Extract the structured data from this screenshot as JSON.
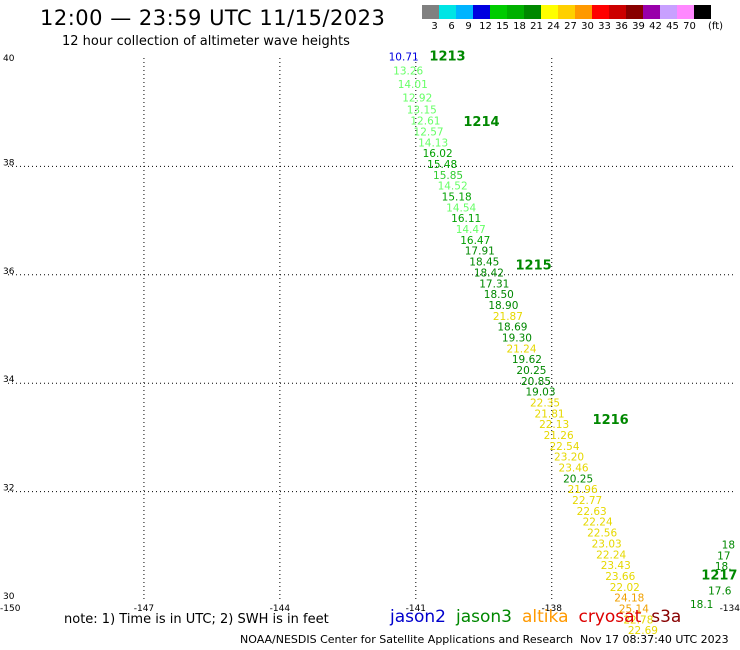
{
  "header": {
    "title": "12:00 — 23:59 UTC 11/15/2023",
    "subtitle": "12 hour collection of altimeter wave heights"
  },
  "colorbar": {
    "unit": "(ft)",
    "items": [
      {
        "label": "3",
        "color": "#808080"
      },
      {
        "label": "6",
        "color": "#00e5e5"
      },
      {
        "label": "9",
        "color": "#00b4ff"
      },
      {
        "label": "12",
        "color": "#0000e0"
      },
      {
        "label": "15",
        "color": "#00cc00"
      },
      {
        "label": "18",
        "color": "#00b000"
      },
      {
        "label": "21",
        "color": "#008800"
      },
      {
        "label": "24",
        "color": "#ffff00"
      },
      {
        "label": "27",
        "color": "#ffd000"
      },
      {
        "label": "30",
        "color": "#ff9900"
      },
      {
        "label": "33",
        "color": "#ff0000"
      },
      {
        "label": "36",
        "color": "#cc0000"
      },
      {
        "label": "39",
        "color": "#880000"
      },
      {
        "label": "42",
        "color": "#9900aa"
      },
      {
        "label": "45",
        "color": "#c8a0ff"
      },
      {
        "label": "70",
        "color": "#ff88ff"
      },
      {
        "label": "",
        "color": "#000000"
      }
    ]
  },
  "map": {
    "lon_range": [
      -150,
      -134
    ],
    "lat_range": [
      30,
      40
    ],
    "grid_lons": [
      -147,
      -144,
      -141,
      -138
    ],
    "grid_lats": [
      32,
      34,
      36,
      38
    ],
    "lon_tick_labels": [
      "-150",
      "-147",
      "-144",
      "-141",
      "-138",
      "-134"
    ],
    "lat_tick_labels": [
      "40",
      "38",
      "36",
      "34",
      "32",
      "30"
    ],
    "lat_tick_values": [
      40,
      38,
      36,
      34,
      32,
      30
    ],
    "time_labels": [
      {
        "text": "1213",
        "lon": -140.7,
        "lat": 39.95
      },
      {
        "text": "1214",
        "lon": -139.95,
        "lat": 38.75
      },
      {
        "text": "1215",
        "lon": -138.8,
        "lat": 36.1
      },
      {
        "text": "1216",
        "lon": -137.1,
        "lat": 33.25
      },
      {
        "text": "1217",
        "lon": -134.7,
        "lat": 30.38
      }
    ],
    "points": [
      {
        "v": "10.71",
        "c": "#0000e0",
        "lon": -141.6,
        "lat": 39.95
      },
      {
        "v": "13.26",
        "c": "#66ff66",
        "lon": -141.5,
        "lat": 39.7
      },
      {
        "v": "14.01",
        "c": "#66ff66",
        "lon": -141.4,
        "lat": 39.45
      },
      {
        "v": "12.92",
        "c": "#66ff66",
        "lon": -141.3,
        "lat": 39.2
      },
      {
        "v": "13.15",
        "c": "#66ff66",
        "lon": -141.2,
        "lat": 38.98
      },
      {
        "v": "12.61",
        "c": "#66ff66",
        "lon": -141.12,
        "lat": 38.77
      },
      {
        "v": "12.57",
        "c": "#66ff66",
        "lon": -141.05,
        "lat": 38.57
      },
      {
        "v": "14.13",
        "c": "#66ff66",
        "lon": -140.95,
        "lat": 38.37
      },
      {
        "v": "16.02",
        "c": "#00a000",
        "lon": -140.85,
        "lat": 38.17
      },
      {
        "v": "15.48",
        "c": "#00a000",
        "lon": -140.75,
        "lat": 37.97
      },
      {
        "v": "15.85",
        "c": "#33cc33",
        "lon": -140.62,
        "lat": 37.77
      },
      {
        "v": "14.52",
        "c": "#66ff66",
        "lon": -140.52,
        "lat": 37.57
      },
      {
        "v": "15.18",
        "c": "#00a000",
        "lon": -140.43,
        "lat": 37.37
      },
      {
        "v": "14.54",
        "c": "#66ff66",
        "lon": -140.33,
        "lat": 37.17
      },
      {
        "v": "16.11",
        "c": "#00a000",
        "lon": -140.22,
        "lat": 36.97
      },
      {
        "v": "14.47",
        "c": "#66ff66",
        "lon": -140.12,
        "lat": 36.77
      },
      {
        "v": "16.47",
        "c": "#00a000",
        "lon": -140.02,
        "lat": 36.57
      },
      {
        "v": "17.91",
        "c": "#008800",
        "lon": -139.92,
        "lat": 36.37
      },
      {
        "v": "18.45",
        "c": "#008800",
        "lon": -139.82,
        "lat": 36.17
      },
      {
        "v": "18.42",
        "c": "#008800",
        "lon": -139.72,
        "lat": 35.97
      },
      {
        "v": "17.31",
        "c": "#008800",
        "lon": -139.6,
        "lat": 35.77
      },
      {
        "v": "18.50",
        "c": "#008800",
        "lon": -139.5,
        "lat": 35.57
      },
      {
        "v": "18.90",
        "c": "#008800",
        "lon": -139.4,
        "lat": 35.37
      },
      {
        "v": "21.87",
        "c": "#e6d800",
        "lon": -139.3,
        "lat": 35.17
      },
      {
        "v": "18.69",
        "c": "#008800",
        "lon": -139.2,
        "lat": 34.97
      },
      {
        "v": "19.30",
        "c": "#008800",
        "lon": -139.1,
        "lat": 34.77
      },
      {
        "v": "21.24",
        "c": "#e6d800",
        "lon": -139.0,
        "lat": 34.57
      },
      {
        "v": "19.62",
        "c": "#008800",
        "lon": -138.88,
        "lat": 34.37
      },
      {
        "v": "20.25",
        "c": "#008800",
        "lon": -138.78,
        "lat": 34.17
      },
      {
        "v": "20.85",
        "c": "#008800",
        "lon": -138.68,
        "lat": 33.97
      },
      {
        "v": "19.03",
        "c": "#008800",
        "lon": -138.58,
        "lat": 33.77
      },
      {
        "v": "22.35",
        "c": "#e6d800",
        "lon": -138.48,
        "lat": 33.57
      },
      {
        "v": "21.81",
        "c": "#e6d800",
        "lon": -138.38,
        "lat": 33.37
      },
      {
        "v": "22.13",
        "c": "#e6d800",
        "lon": -138.28,
        "lat": 33.17
      },
      {
        "v": "21.26",
        "c": "#e6d800",
        "lon": -138.18,
        "lat": 32.97
      },
      {
        "v": "22.54",
        "c": "#e6d800",
        "lon": -138.05,
        "lat": 32.77
      },
      {
        "v": "23.20",
        "c": "#e6d800",
        "lon": -137.95,
        "lat": 32.57
      },
      {
        "v": "23.46",
        "c": "#e6d800",
        "lon": -137.85,
        "lat": 32.37
      },
      {
        "v": "20.25",
        "c": "#008800",
        "lon": -137.75,
        "lat": 32.17
      },
      {
        "v": "21.96",
        "c": "#e6d800",
        "lon": -137.65,
        "lat": 31.97
      },
      {
        "v": "22.77",
        "c": "#e6d800",
        "lon": -137.55,
        "lat": 31.77
      },
      {
        "v": "22.63",
        "c": "#e6d800",
        "lon": -137.45,
        "lat": 31.57
      },
      {
        "v": "22.24",
        "c": "#e6d800",
        "lon": -137.32,
        "lat": 31.37
      },
      {
        "v": "22.56",
        "c": "#e6d800",
        "lon": -137.22,
        "lat": 31.17
      },
      {
        "v": "23.03",
        "c": "#e6d800",
        "lon": -137.12,
        "lat": 30.97
      },
      {
        "v": "22.24",
        "c": "#e6d800",
        "lon": -137.02,
        "lat": 30.77
      },
      {
        "v": "23.43",
        "c": "#e6d800",
        "lon": -136.92,
        "lat": 30.57
      },
      {
        "v": "23.66",
        "c": "#e6d800",
        "lon": -136.82,
        "lat": 30.37
      },
      {
        "v": "22.02",
        "c": "#e6d800",
        "lon": -136.72,
        "lat": 30.17
      },
      {
        "v": "24.18",
        "c": "#f0a000",
        "lon": -136.62,
        "lat": 29.97
      },
      {
        "v": "25.14",
        "c": "#f0a000",
        "lon": -136.52,
        "lat": 29.77
      },
      {
        "v": "22.78",
        "c": "#e6d800",
        "lon": -136.42,
        "lat": 29.57
      },
      {
        "v": "22.69",
        "c": "#e6d800",
        "lon": -136.32,
        "lat": 29.37
      },
      {
        "v": "18",
        "c": "#008800",
        "lon": -134.25,
        "lat": 30.95
      },
      {
        "v": "17",
        "c": "#008800",
        "lon": -134.35,
        "lat": 30.75
      },
      {
        "v": "18.",
        "c": "#008800",
        "lon": -134.4,
        "lat": 30.55
      },
      {
        "v": "17.6",
        "c": "#008800",
        "lon": -134.55,
        "lat": 30.1
      },
      {
        "v": "18.1",
        "c": "#008800",
        "lon": -134.95,
        "lat": 29.85
      }
    ]
  },
  "footer": {
    "note": "note: 1) Time is in UTC; 2) SWH is in feet",
    "satellites": [
      {
        "name": "jason2",
        "color": "#0000cc"
      },
      {
        "name": "jason3",
        "color": "#008800"
      },
      {
        "name": "altika",
        "color": "#ff9900"
      },
      {
        "name": "cryosat",
        "color": "#dd0000"
      },
      {
        "name": "s3a",
        "color": "#880000"
      }
    ],
    "credit": "NOAA/NESDIS Center for Satellite Applications and Research",
    "timestamp": "Nov 17 08:37:40 UTC 2023"
  }
}
